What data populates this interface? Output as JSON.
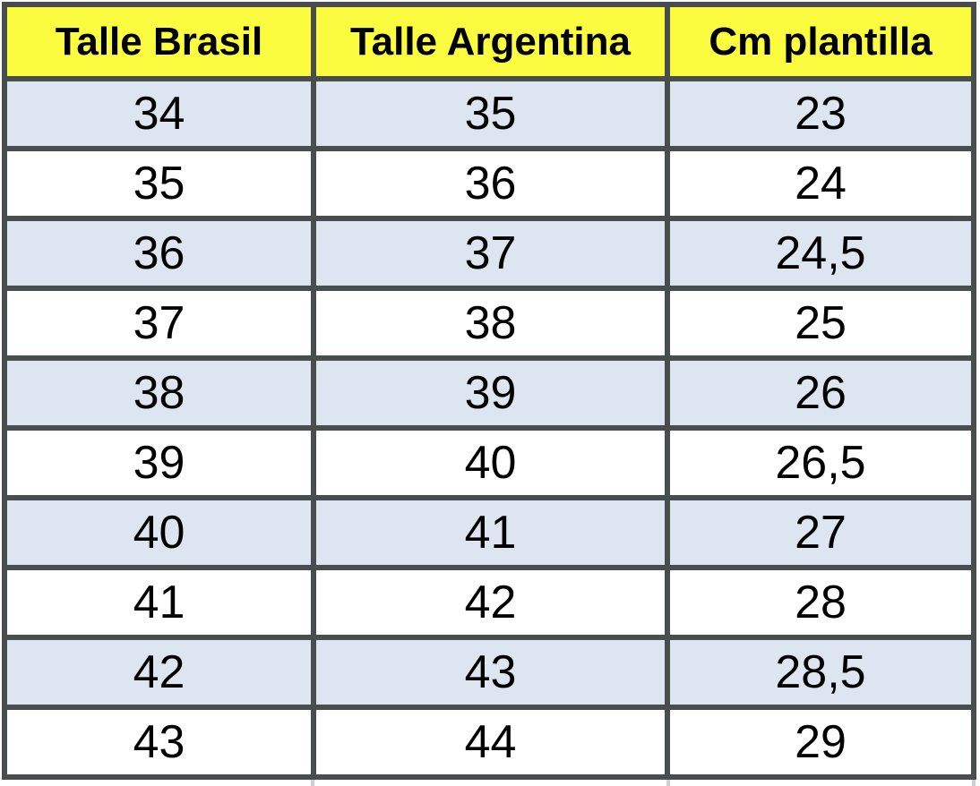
{
  "chart_data": {
    "type": "table",
    "title": "",
    "columns": [
      "Talle Brasil",
      "Talle Argentina",
      "Cm plantilla"
    ],
    "rows": [
      [
        "34",
        "35",
        "23"
      ],
      [
        "35",
        "36",
        "24"
      ],
      [
        "36",
        "37",
        "24,5"
      ],
      [
        "37",
        "38",
        "25"
      ],
      [
        "38",
        "39",
        "26"
      ],
      [
        "39",
        "40",
        "26,5"
      ],
      [
        "40",
        "41",
        "27"
      ],
      [
        "41",
        "42",
        "28"
      ],
      [
        "42",
        "43",
        "28,5"
      ],
      [
        "43",
        "44",
        "29"
      ]
    ],
    "layout": {
      "striping": "first data row shaded, alternating",
      "grid": "on",
      "clipped_partial_row_at_bottom": true
    }
  },
  "colors": {
    "header_bg": "#FBFB40",
    "row_alt_bg": "#DDE6F0",
    "row_bg": "#FFFFFF",
    "border": "#484D4D",
    "text": "#000000",
    "partial_line": "#CFCFCF"
  }
}
